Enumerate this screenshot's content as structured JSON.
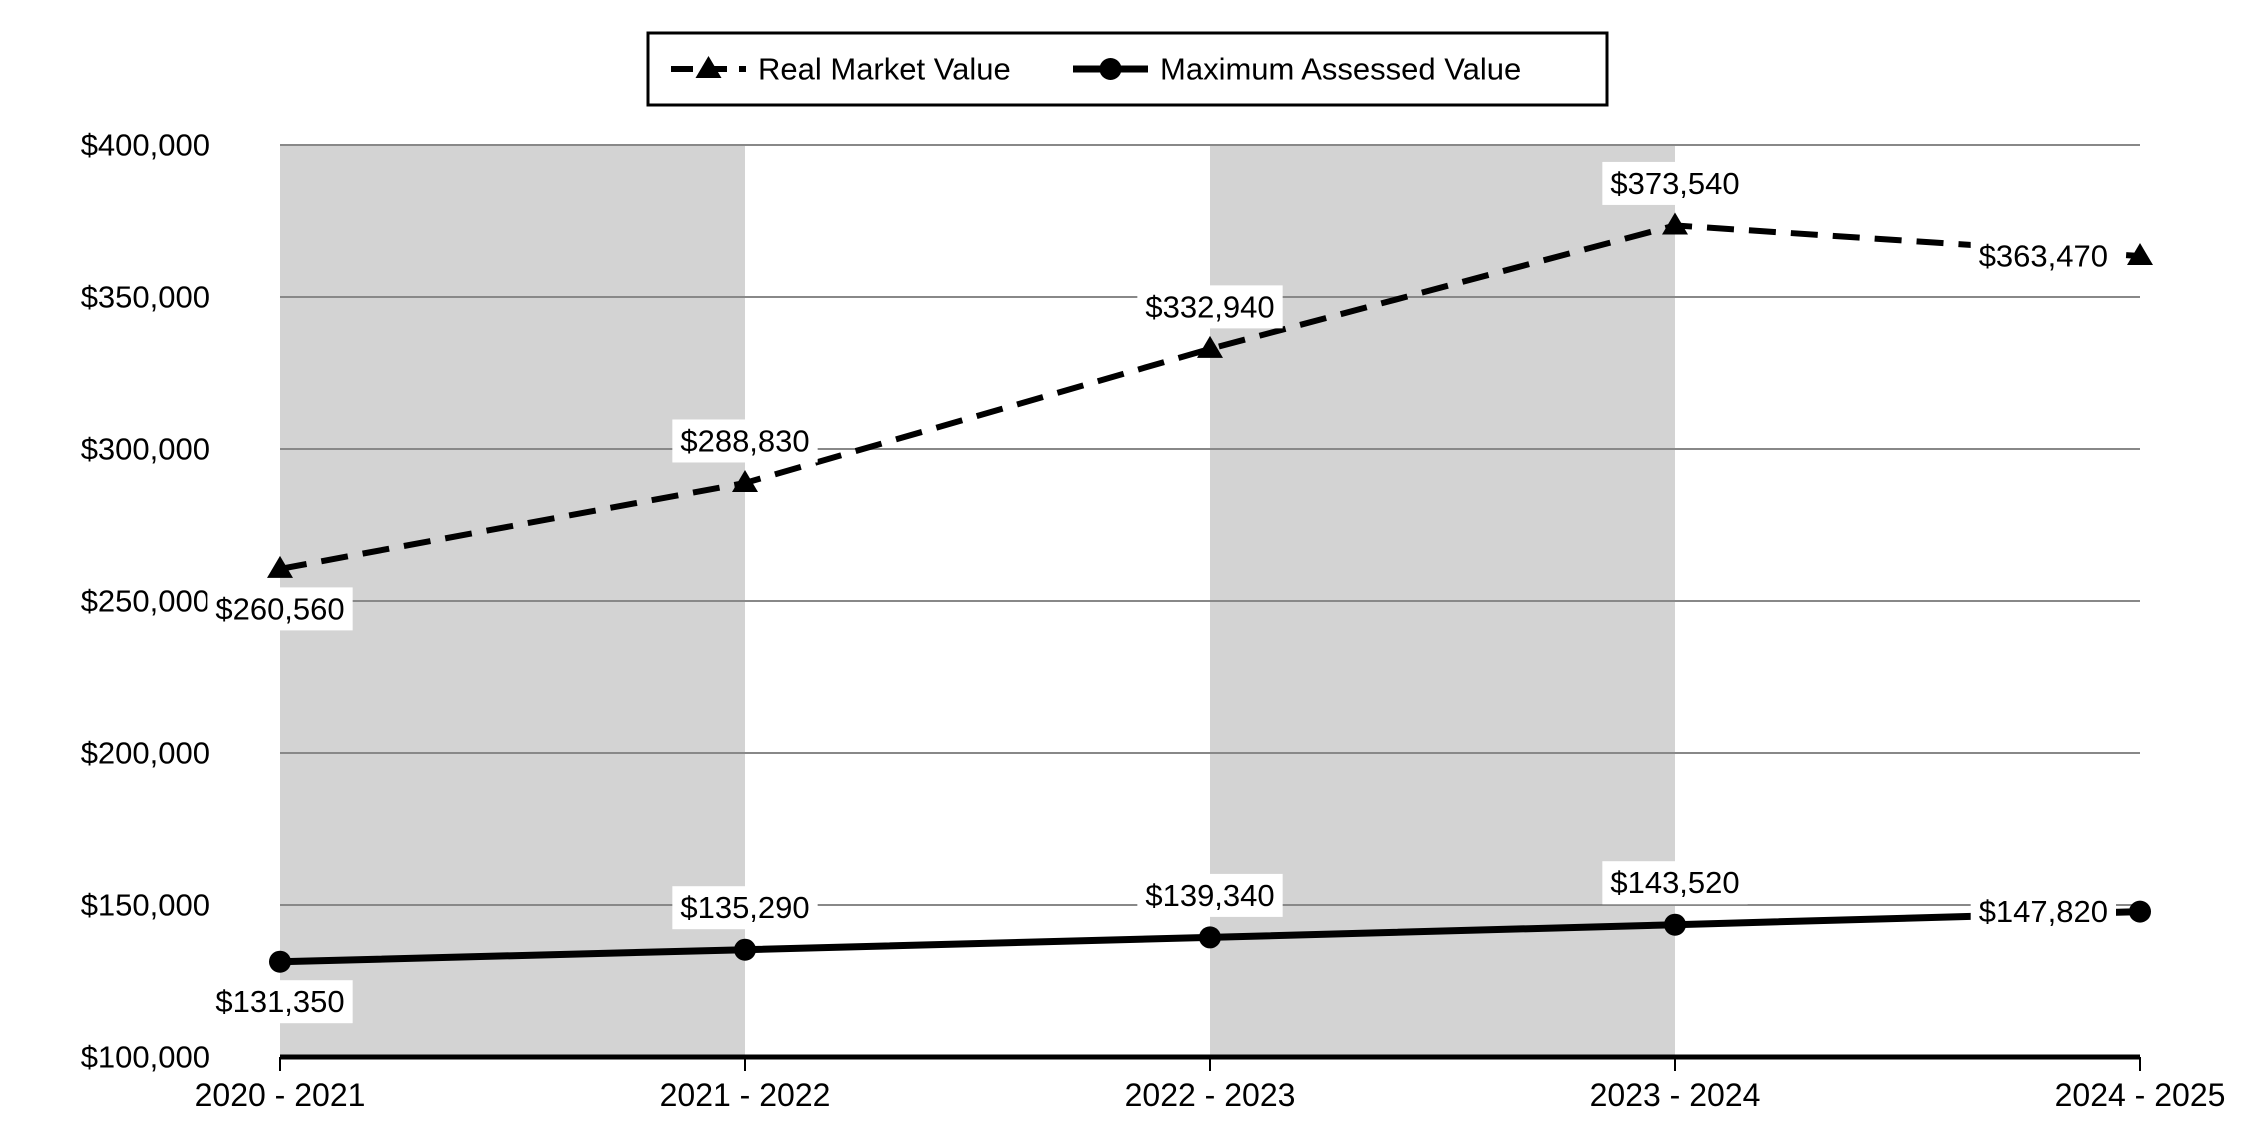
{
  "chart_data": {
    "type": "line",
    "title": "",
    "categories": [
      "2020 - 2021",
      "2021 - 2022",
      "2022 - 2023",
      "2023 - 2024",
      "2024 - 2025"
    ],
    "series": [
      {
        "name": "Real Market Value",
        "line_style": "dashed",
        "marker": "triangle",
        "values": [
          260560,
          288830,
          332940,
          373540,
          363470
        ],
        "data_labels": [
          "$260,560",
          "$288,830",
          "$332,940",
          "$373,540",
          "$363,470"
        ],
        "label_placement": [
          "below",
          "above",
          "above",
          "above",
          "left"
        ]
      },
      {
        "name": "Maximum Assessed Value",
        "line_style": "solid",
        "marker": "circle",
        "values": [
          131350,
          135290,
          139340,
          143520,
          147820
        ],
        "data_labels": [
          "$131,350",
          "$135,290",
          "$139,340",
          "$143,520",
          "$147,820"
        ],
        "label_placement": [
          "below",
          "above",
          "above",
          "above",
          "left"
        ]
      }
    ],
    "y_axis": {
      "min": 100000,
      "max": 400000,
      "step": 50000,
      "tick_labels_top_down": [
        "$400,000",
        "$350,000",
        "$300,000",
        "$250,000",
        "$200,000",
        "$150,000",
        "$100,000"
      ]
    },
    "x_axis": {
      "tick_labels": [
        "2020 - 2021",
        "2021 - 2022",
        "2022 - 2023",
        "2023 - 2024",
        "2024 - 2025"
      ]
    },
    "grid": true,
    "legend_position": "top",
    "plot_bands": {
      "between_category_indices": [
        [
          0,
          1
        ],
        [
          2,
          3
        ]
      ]
    },
    "colors": {
      "background": "#ffffff",
      "band": "#d3d3d3",
      "gridline": "#888888",
      "axis": "#000000",
      "series": "#000000",
      "label_background": "#ffffff",
      "text": "#000000",
      "legend_border": "#000000"
    }
  }
}
